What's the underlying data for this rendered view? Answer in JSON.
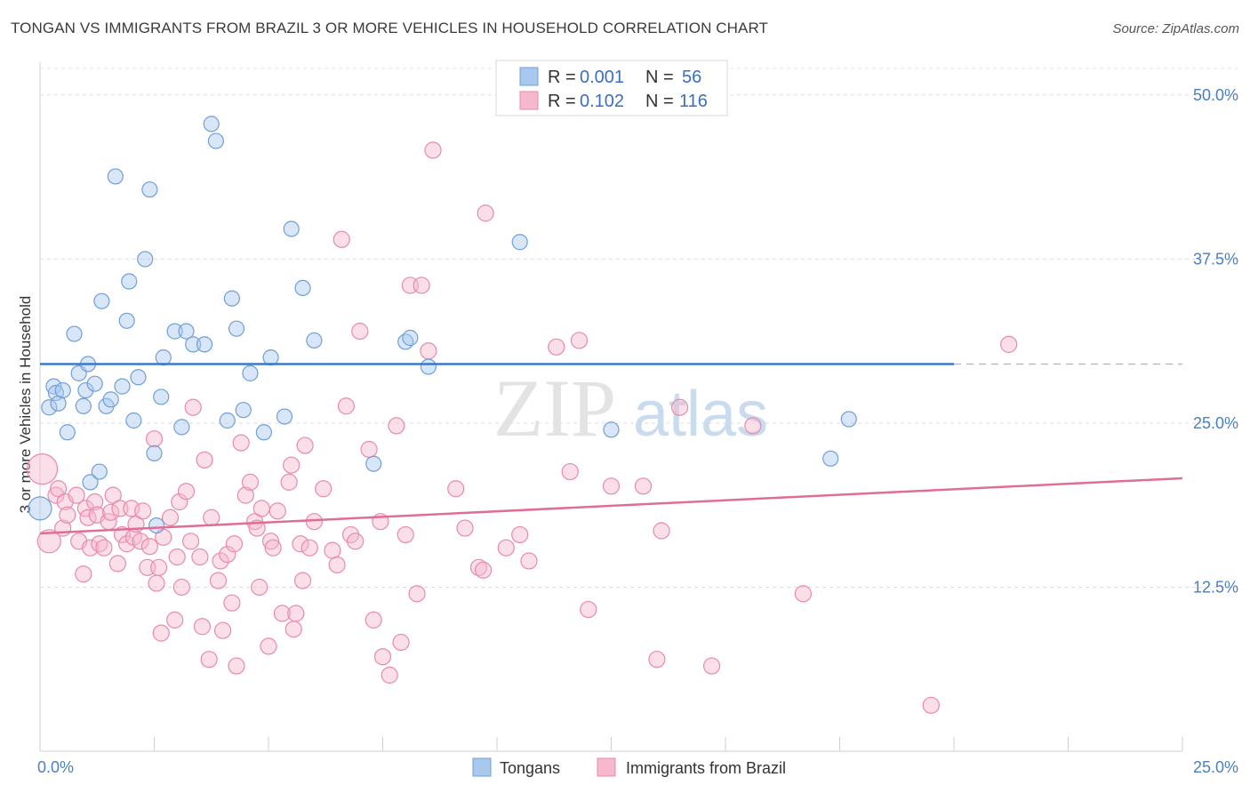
{
  "title": "TONGAN VS IMMIGRANTS FROM BRAZIL 3 OR MORE VEHICLES IN HOUSEHOLD CORRELATION CHART",
  "source": "Source: ZipAtlas.com",
  "watermark": {
    "zip": "ZIP",
    "atlas": "atlas"
  },
  "colors": {
    "blue": "#a8c8ee",
    "blue_stroke": "#6f9fd8",
    "blue_line": "#3a78c9",
    "pink": "#f5b8cc",
    "pink_stroke": "#e88aa8",
    "pink_line": "#e06d96"
  },
  "chart_data": {
    "type": "scatter",
    "title": "TONGAN VS IMMIGRANTS FROM BRAZIL 3 OR MORE VEHICLES IN HOUSEHOLD CORRELATION CHART",
    "xlabel": "",
    "ylabel": "3 or more Vehicles in Household",
    "xlim": [
      0,
      25
    ],
    "ylim": [
      0,
      52.5
    ],
    "x_tick_labels": [
      "0.0%",
      "25.0%"
    ],
    "y_ticks": [
      12.5,
      25.0,
      37.5,
      50.0
    ],
    "y_tick_labels": [
      "12.5%",
      "25.0%",
      "37.5%",
      "50.0%"
    ],
    "grid": true,
    "legend_position": "top-center",
    "legend": [
      {
        "label": "R = ",
        "r": "0.001",
        "n_label": "N = ",
        "n": "56"
      },
      {
        "label": "R = ",
        "r": "0.102",
        "n_label": "N = ",
        "n": "116"
      }
    ],
    "series": [
      {
        "name": "Tongans",
        "color": "#a8c8ee",
        "trend": {
          "x": [
            0,
            20
          ],
          "y": [
            29.5,
            29.5
          ],
          "dashed_to": 25
        },
        "points": [
          [
            0.0,
            18.5
          ],
          [
            0.2,
            26.2
          ],
          [
            0.3,
            27.8
          ],
          [
            0.35,
            27.3
          ],
          [
            0.4,
            26.5
          ],
          [
            0.5,
            27.5
          ],
          [
            0.6,
            24.3
          ],
          [
            0.75,
            31.8
          ],
          [
            0.85,
            28.8
          ],
          [
            0.95,
            26.3
          ],
          [
            1.0,
            27.5
          ],
          [
            1.05,
            29.5
          ],
          [
            1.1,
            20.5
          ],
          [
            1.2,
            28.0
          ],
          [
            1.3,
            21.3
          ],
          [
            1.35,
            34.3
          ],
          [
            1.45,
            26.3
          ],
          [
            1.55,
            26.8
          ],
          [
            1.65,
            43.8
          ],
          [
            1.8,
            27.8
          ],
          [
            1.9,
            32.8
          ],
          [
            1.95,
            35.8
          ],
          [
            2.05,
            25.2
          ],
          [
            2.15,
            28.5
          ],
          [
            2.3,
            37.5
          ],
          [
            2.4,
            42.8
          ],
          [
            2.5,
            22.7
          ],
          [
            2.55,
            17.2
          ],
          [
            2.65,
            27.0
          ],
          [
            2.7,
            30.0
          ],
          [
            2.95,
            32.0
          ],
          [
            3.1,
            24.7
          ],
          [
            3.2,
            32.0
          ],
          [
            3.35,
            31.0
          ],
          [
            3.6,
            31.0
          ],
          [
            3.75,
            47.8
          ],
          [
            3.85,
            46.5
          ],
          [
            4.1,
            25.2
          ],
          [
            4.2,
            34.5
          ],
          [
            4.3,
            32.2
          ],
          [
            4.45,
            26.0
          ],
          [
            4.6,
            28.8
          ],
          [
            4.9,
            24.3
          ],
          [
            5.05,
            30.0
          ],
          [
            5.35,
            25.5
          ],
          [
            5.5,
            39.8
          ],
          [
            5.75,
            35.3
          ],
          [
            6.0,
            31.3
          ],
          [
            7.3,
            21.9
          ],
          [
            8.0,
            31.2
          ],
          [
            8.1,
            31.5
          ],
          [
            8.5,
            29.3
          ],
          [
            10.5,
            38.8
          ],
          [
            12.5,
            24.5
          ],
          [
            17.3,
            22.3
          ],
          [
            17.7,
            25.3
          ]
        ]
      },
      {
        "name": "Immigrants from Brazil",
        "color": "#f5b8cc",
        "trend": {
          "x": [
            0,
            25
          ],
          "y": [
            16.6,
            20.8
          ]
        },
        "points": [
          [
            0.05,
            21.5
          ],
          [
            0.2,
            16.0
          ],
          [
            0.35,
            19.5
          ],
          [
            0.4,
            20.0
          ],
          [
            0.5,
            17.0
          ],
          [
            0.55,
            19.0
          ],
          [
            0.6,
            18.0
          ],
          [
            0.8,
            19.5
          ],
          [
            0.85,
            16.0
          ],
          [
            0.95,
            13.5
          ],
          [
            1.0,
            18.5
          ],
          [
            1.05,
            17.8
          ],
          [
            1.1,
            15.5
          ],
          [
            1.2,
            19.0
          ],
          [
            1.25,
            18.0
          ],
          [
            1.3,
            15.8
          ],
          [
            1.4,
            15.5
          ],
          [
            1.5,
            17.5
          ],
          [
            1.55,
            18.2
          ],
          [
            1.6,
            19.5
          ],
          [
            1.7,
            14.3
          ],
          [
            1.75,
            18.5
          ],
          [
            1.8,
            16.5
          ],
          [
            1.9,
            15.8
          ],
          [
            2.0,
            18.5
          ],
          [
            2.05,
            16.3
          ],
          [
            2.1,
            17.3
          ],
          [
            2.2,
            16.0
          ],
          [
            2.25,
            18.3
          ],
          [
            2.35,
            14.0
          ],
          [
            2.4,
            15.6
          ],
          [
            2.5,
            23.8
          ],
          [
            2.55,
            12.8
          ],
          [
            2.6,
            14.0
          ],
          [
            2.65,
            9.0
          ],
          [
            2.7,
            16.3
          ],
          [
            2.85,
            17.8
          ],
          [
            2.95,
            10.0
          ],
          [
            3.0,
            14.8
          ],
          [
            3.05,
            19.0
          ],
          [
            3.1,
            12.5
          ],
          [
            3.2,
            19.8
          ],
          [
            3.3,
            16.0
          ],
          [
            3.35,
            26.2
          ],
          [
            3.5,
            14.8
          ],
          [
            3.55,
            9.5
          ],
          [
            3.6,
            22.2
          ],
          [
            3.7,
            7.0
          ],
          [
            3.75,
            17.8
          ],
          [
            3.9,
            13.0
          ],
          [
            3.95,
            14.5
          ],
          [
            4.0,
            9.2
          ],
          [
            4.1,
            15.0
          ],
          [
            4.2,
            11.3
          ],
          [
            4.25,
            15.8
          ],
          [
            4.3,
            6.5
          ],
          [
            4.4,
            23.5
          ],
          [
            4.5,
            19.5
          ],
          [
            4.6,
            20.5
          ],
          [
            4.7,
            17.5
          ],
          [
            4.75,
            17.0
          ],
          [
            4.8,
            12.5
          ],
          [
            4.85,
            18.5
          ],
          [
            5.0,
            8.0
          ],
          [
            5.05,
            16.0
          ],
          [
            5.1,
            15.5
          ],
          [
            5.2,
            18.3
          ],
          [
            5.3,
            10.5
          ],
          [
            5.45,
            20.5
          ],
          [
            5.5,
            21.8
          ],
          [
            5.55,
            9.3
          ],
          [
            5.6,
            10.5
          ],
          [
            5.7,
            15.8
          ],
          [
            5.75,
            13.0
          ],
          [
            5.8,
            23.3
          ],
          [
            5.9,
            15.5
          ],
          [
            6.0,
            17.5
          ],
          [
            6.2,
            20.0
          ],
          [
            6.4,
            15.3
          ],
          [
            6.5,
            14.2
          ],
          [
            6.6,
            39.0
          ],
          [
            6.7,
            26.3
          ],
          [
            6.8,
            16.5
          ],
          [
            6.9,
            16.0
          ],
          [
            7.0,
            32.0
          ],
          [
            7.2,
            23.0
          ],
          [
            7.3,
            10.0
          ],
          [
            7.45,
            17.5
          ],
          [
            7.5,
            7.2
          ],
          [
            7.65,
            5.8
          ],
          [
            7.8,
            24.8
          ],
          [
            7.9,
            8.3
          ],
          [
            8.0,
            16.5
          ],
          [
            8.1,
            35.5
          ],
          [
            8.25,
            12.0
          ],
          [
            8.35,
            35.5
          ],
          [
            8.5,
            30.5
          ],
          [
            8.6,
            45.8
          ],
          [
            9.1,
            20.0
          ],
          [
            9.3,
            17.0
          ],
          [
            9.6,
            14.0
          ],
          [
            9.7,
            13.8
          ],
          [
            9.75,
            41.0
          ],
          [
            10.2,
            15.5
          ],
          [
            10.5,
            16.5
          ],
          [
            10.7,
            14.5
          ],
          [
            11.3,
            30.8
          ],
          [
            11.6,
            21.3
          ],
          [
            11.8,
            31.3
          ],
          [
            12.0,
            10.8
          ],
          [
            12.5,
            20.2
          ],
          [
            13.2,
            20.2
          ],
          [
            13.5,
            7.0
          ],
          [
            13.6,
            16.8
          ],
          [
            14.0,
            26.2
          ],
          [
            14.7,
            6.5
          ],
          [
            15.6,
            24.8
          ],
          [
            16.7,
            12.0
          ],
          [
            19.5,
            3.5
          ],
          [
            21.2,
            31.0
          ]
        ]
      }
    ]
  },
  "bottom_legend": [
    {
      "name": "Tongans",
      "swatch": "blue"
    },
    {
      "name": "Immigrants from Brazil",
      "swatch": "pink"
    }
  ]
}
